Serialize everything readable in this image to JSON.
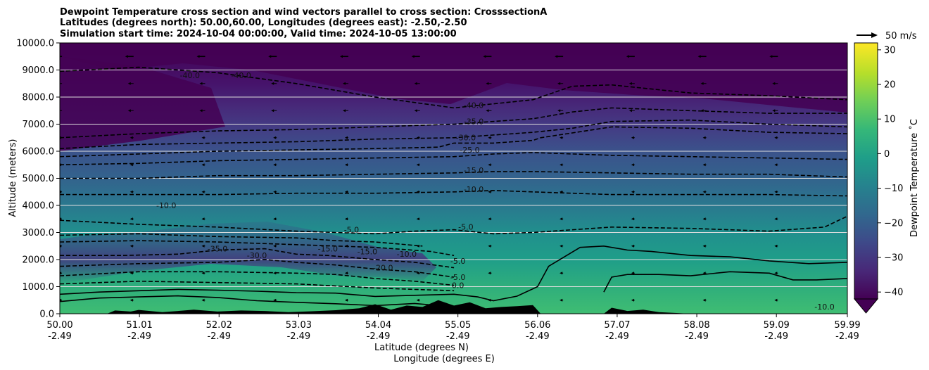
{
  "chart_data": {
    "type": "contour",
    "title_lines": [
      "Dewpoint Temperature cross section and wind vectors parallel to cross section: CrosssectionA",
      "Latitudes (degrees north): 50.00,60.00, Longitudes (degrees east): -2.50,-2.50",
      "Simulation start time: 2024-10-04 00:00:00, Valid time: 2024-10-05 13:00:00"
    ],
    "xlabel_lat": "Latitude (degrees N)",
    "xlabel_lon": "Longitude (degrees E)",
    "ylabel": "Altitude (meters)",
    "x_range": [
      50.0,
      59.99
    ],
    "ylim": [
      0,
      10000
    ],
    "x_ticks": [
      {
        "value": 50.0,
        "lat": "50.00",
        "lon": "-2.49"
      },
      {
        "value": 51.01,
        "lat": "51.01",
        "lon": "-2.49"
      },
      {
        "value": 52.02,
        "lat": "52.02",
        "lon": "-2.49"
      },
      {
        "value": 53.03,
        "lat": "53.03",
        "lon": "-2.49"
      },
      {
        "value": 54.04,
        "lat": "54.04",
        "lon": "-2.49"
      },
      {
        "value": 55.05,
        "lat": "55.05",
        "lon": "-2.49"
      },
      {
        "value": 56.06,
        "lat": "56.06",
        "lon": "-2.49"
      },
      {
        "value": 57.07,
        "lat": "57.07",
        "lon": "-2.49"
      },
      {
        "value": 58.08,
        "lat": "58.08",
        "lon": "-2.49"
      },
      {
        "value": 59.09,
        "lat": "59.09",
        "lon": "-2.49"
      },
      {
        "value": 59.99,
        "lat": "59.99",
        "lon": "-2.49"
      }
    ],
    "y_ticks": [
      {
        "value": 0,
        "label": "0.0"
      },
      {
        "value": 1000,
        "label": "1000.0"
      },
      {
        "value": 2000,
        "label": "2000.0"
      },
      {
        "value": 3000,
        "label": "3000.0"
      },
      {
        "value": 4000,
        "label": "4000.0"
      },
      {
        "value": 5000,
        "label": "5000.0"
      },
      {
        "value": 6000,
        "label": "6000.0"
      },
      {
        "value": 7000,
        "label": "7000.0"
      },
      {
        "value": 8000,
        "label": "8000.0"
      },
      {
        "value": 9000,
        "label": "9000.0"
      },
      {
        "value": 10000,
        "label": "10000.0"
      }
    ],
    "grid": "horizontal",
    "colorbar": {
      "label": "Dewpoint Temperature ˚C",
      "range": [
        -42,
        32
      ],
      "ticks": [
        -40,
        -30,
        -20,
        -10,
        0,
        10,
        20,
        30
      ],
      "extend": "min",
      "colormap": "viridis",
      "colors": [
        "#440154",
        "#482878",
        "#3e4989",
        "#31688e",
        "#26828e",
        "#1f9e89",
        "#35b779",
        "#6ece58",
        "#b5de2b",
        "#fde725"
      ]
    },
    "wind_reference": {
      "label": "50 m/s",
      "speed": 50
    },
    "contour_levels": [
      {
        "label": "0.0",
        "x": 55.05,
        "y": 950
      },
      {
        "label": "-5.0",
        "x": 55.05,
        "y": 1250
      },
      {
        "label": "-5.0",
        "x": 55.05,
        "y": 1850
      },
      {
        "label": "-5.0",
        "x": 55.15,
        "y": 3100
      },
      {
        "label": "-5.0",
        "x": 53.7,
        "y": 3000
      },
      {
        "label": "-10.0",
        "x": 54.4,
        "y": 2100
      },
      {
        "label": "-10.0",
        "x": 55.25,
        "y": 4500
      },
      {
        "label": "-10.0",
        "x": 51.35,
        "y": 3900
      },
      {
        "label": "-15.0",
        "x": 53.4,
        "y": 2300
      },
      {
        "label": "-15.0",
        "x": 53.9,
        "y": 2200
      },
      {
        "label": "-15.0",
        "x": 55.25,
        "y": 5200
      },
      {
        "label": "-20.0",
        "x": 54.1,
        "y": 1600
      },
      {
        "label": "-25.0",
        "x": 55.2,
        "y": 5950
      },
      {
        "label": "-30.0",
        "x": 52.5,
        "y": 2050
      },
      {
        "label": "-30.0",
        "x": 55.15,
        "y": 6400
      },
      {
        "label": "-35.0",
        "x": 52.0,
        "y": 2300
      },
      {
        "label": "-35.0",
        "x": 55.25,
        "y": 7000
      },
      {
        "label": "-40.0",
        "x": 55.25,
        "y": 7600
      },
      {
        "label": "-40.0",
        "x": 51.65,
        "y": 8700
      },
      {
        "label": "-40.0",
        "x": 52.3,
        "y": 8700
      },
      {
        "label": "-10.0",
        "x": 59.7,
        "y": 150
      }
    ],
    "isotherms": [
      {
        "level": 0,
        "style": "solid",
        "x": [
          50.0,
          50.5,
          51.0,
          51.5,
          52.0,
          52.5,
          53.0,
          53.5,
          54.0,
          54.5,
          55.0,
          55.3,
          55.5,
          55.8,
          56.06,
          56.2,
          56.6,
          56.9,
          57.2,
          57.5,
          58.0,
          58.5,
          59.0,
          59.5,
          59.99
        ],
        "y": [
          720,
          800,
          850,
          900,
          870,
          830,
          780,
          760,
          640,
          680,
          720,
          620,
          480,
          650,
          1000,
          1750,
          2450,
          2500,
          2350,
          2300,
          2150,
          2100,
          1950,
          1850,
          1900
        ]
      },
      {
        "level": 0,
        "style": "solid",
        "x": [
          56.9,
          57.0,
          57.2,
          57.6,
          58.0,
          58.5,
          59.0,
          59.3,
          59.6,
          59.99
        ],
        "y": [
          800,
          1350,
          1450,
          1450,
          1400,
          1550,
          1500,
          1250,
          1250,
          1300
        ]
      },
      {
        "level": 0,
        "style": "solid",
        "x": [
          50.0,
          50.5,
          51.0,
          51.5,
          52.0,
          52.5,
          53.0,
          53.5,
          54.0,
          54.5,
          55.0
        ],
        "y": [
          450,
          580,
          620,
          660,
          600,
          480,
          420,
          370,
          300,
          380,
          250
        ]
      },
      {
        "level": -5,
        "style": "dashed",
        "x": [
          50.0,
          51.0,
          52.0,
          53.0,
          53.5,
          54.0,
          54.5,
          55.0,
          55.5,
          56.0,
          57.0,
          58.0,
          59.0,
          59.7,
          59.99
        ],
        "y": [
          3450,
          3300,
          3200,
          3050,
          3000,
          2950,
          3050,
          3100,
          2950,
          3000,
          3200,
          3150,
          3050,
          3200,
          3600
        ]
      },
      {
        "level": -10,
        "style": "dashed",
        "x": [
          50.0,
          51.0,
          52.0,
          53.0,
          54.0,
          55.0,
          55.5,
          56.0,
          57.0,
          58.0,
          59.0,
          59.99
        ],
        "y": [
          4400,
          4400,
          4400,
          4450,
          4450,
          4500,
          4550,
          4500,
          4400,
          4400,
          4400,
          4350
        ]
      },
      {
        "level": -15,
        "style": "dashed",
        "x": [
          50.0,
          51.0,
          52.0,
          53.0,
          54.0,
          55.0,
          55.5,
          56.0,
          57.0,
          58.0,
          59.0,
          59.99
        ],
        "y": [
          5000,
          5000,
          5100,
          5100,
          5150,
          5200,
          5250,
          5250,
          5200,
          5150,
          5150,
          5050
        ]
      },
      {
        "level": -20,
        "style": "dashed",
        "x": [
          50.0,
          51.0,
          52.0,
          53.0,
          54.0,
          55.0,
          55.5,
          56.0,
          57.0,
          58.0,
          59.0,
          59.99
        ],
        "y": [
          5500,
          5550,
          5650,
          5700,
          5750,
          5800,
          5900,
          5950,
          5850,
          5800,
          5750,
          5700
        ]
      },
      {
        "level": -25,
        "style": "dashed",
        "x": [
          50.0,
          51.0,
          52.0,
          53.0,
          54.0,
          54.8,
          55.0,
          55.5,
          56.0,
          56.1,
          57.0,
          58.0,
          59.0,
          59.99
        ],
        "y": [
          5800,
          5900,
          6000,
          6050,
          6100,
          6150,
          6300,
          6300,
          6400,
          6500,
          6900,
          6850,
          6700,
          6650
        ]
      },
      {
        "level": -30,
        "style": "dashed",
        "x": [
          50.0,
          51.0,
          52.0,
          53.0,
          54.0,
          55.0,
          56.0,
          56.5,
          57.0,
          58.0,
          59.0,
          59.99
        ],
        "y": [
          6100,
          6250,
          6300,
          6350,
          6450,
          6500,
          6700,
          6850,
          7100,
          7150,
          7000,
          6900
        ]
      },
      {
        "level": -35,
        "style": "dashed",
        "x": [
          50.0,
          51.0,
          52.0,
          53.0,
          54.0,
          55.0,
          56.0,
          56.5,
          57.0,
          58.0,
          59.0,
          59.99
        ],
        "y": [
          6500,
          6650,
          6750,
          6800,
          6900,
          7000,
          7200,
          7450,
          7600,
          7500,
          7400,
          7400
        ]
      },
      {
        "level": -40,
        "style": "dashed",
        "x": [
          50.0,
          51.0,
          52.0,
          53.0,
          54.0,
          55.0,
          56.0,
          56.5,
          57.0,
          58.0,
          59.0,
          59.99
        ],
        "y": [
          8950,
          9100,
          8900,
          8500,
          8000,
          7600,
          7900,
          8400,
          8450,
          8150,
          8050,
          7900
        ]
      },
      {
        "level": -20,
        "style": "dashed",
        "x": [
          50.0,
          50.8,
          51.5,
          52.0,
          52.6,
          53.0,
          53.4,
          54.0,
          54.5,
          55.0
        ],
        "y": [
          2150,
          2150,
          2200,
          2350,
          2400,
          2200,
          2150,
          2000,
          1900,
          1700
        ]
      },
      {
        "level": -15,
        "style": "dashed",
        "x": [
          50.0,
          51.0,
          52.0,
          52.6,
          53.0,
          53.5,
          54.0,
          54.5,
          55.0
        ],
        "y": [
          1750,
          1850,
          1900,
          2000,
          1900,
          1800,
          1650,
          1550,
          1350
        ]
      },
      {
        "level": -10,
        "style": "dashed",
        "x": [
          50.0,
          51.0,
          52.0,
          53.0,
          53.5,
          54.0,
          54.5,
          55.0
        ],
        "y": [
          1400,
          1550,
          1550,
          1500,
          1450,
          1300,
          1200,
          1050
        ]
      },
      {
        "level": -5,
        "style": "dashed",
        "x": [
          50.0,
          51.0,
          52.0,
          53.0,
          54.0,
          54.5,
          55.0
        ],
        "y": [
          1100,
          1200,
          1150,
          1100,
          950,
          900,
          850
        ]
      },
      {
        "level": -10,
        "style": "dashed",
        "x": [
          50.0,
          51.0,
          52.0,
          53.0,
          54.0,
          54.7,
          55.0
        ],
        "y": [
          2650,
          2700,
          2650,
          2550,
          2450,
          2300,
          2150
        ]
      },
      {
        "level": -15,
        "style": "dashed",
        "x": [
          50.0,
          51.0,
          52.0,
          53.0,
          53.5,
          54.0,
          54.6
        ],
        "y": [
          2900,
          2950,
          2850,
          2800,
          2700,
          2650,
          2500
        ]
      }
    ],
    "terrain": {
      "x": [
        50.0,
        50.6,
        50.7,
        50.9,
        51.0,
        51.3,
        51.5,
        51.7,
        52.0,
        52.3,
        52.6,
        52.9,
        53.2,
        53.5,
        53.8,
        54.0,
        54.2,
        54.4,
        54.6,
        54.8,
        55.0,
        55.2,
        55.4,
        55.6,
        55.8,
        56.0,
        56.1,
        56.3,
        56.6,
        56.9,
        57.0,
        57.2,
        57.4,
        57.6,
        58.0,
        58.5,
        59.0,
        59.5,
        59.99
      ],
      "y": [
        0,
        0,
        120,
        80,
        140,
        60,
        100,
        150,
        80,
        120,
        100,
        60,
        90,
        130,
        200,
        350,
        150,
        300,
        250,
        500,
        300,
        420,
        200,
        250,
        280,
        320,
        0,
        0,
        0,
        0,
        220,
        100,
        150,
        60,
        0,
        0,
        0,
        0,
        0
      ]
    }
  }
}
